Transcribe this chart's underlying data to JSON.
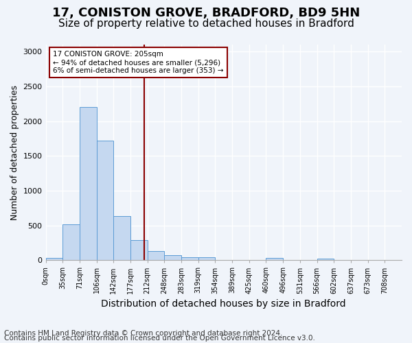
{
  "title_line1": "17, CONISTON GROVE, BRADFORD, BD9 5HN",
  "title_line2": "Size of property relative to detached houses in Bradford",
  "xlabel": "Distribution of detached houses by size in Bradford",
  "ylabel": "Number of detached properties",
  "bin_labels": [
    "0sqm",
    "35sqm",
    "71sqm",
    "106sqm",
    "142sqm",
    "177sqm",
    "212sqm",
    "248sqm",
    "283sqm",
    "319sqm",
    "354sqm",
    "389sqm",
    "425sqm",
    "460sqm",
    "496sqm",
    "531sqm",
    "566sqm",
    "602sqm",
    "637sqm",
    "673sqm",
    "708sqm"
  ],
  "bar_values": [
    30,
    520,
    2200,
    1720,
    635,
    290,
    130,
    75,
    45,
    40,
    0,
    0,
    0,
    30,
    0,
    0,
    20,
    0,
    0,
    0,
    0
  ],
  "bar_color": "#c5d8f0",
  "bar_edge_color": "#5b9bd5",
  "vline_x": 5.83,
  "vline_color": "#8b0000",
  "annotation_text": "17 CONISTON GROVE: 205sqm\n← 94% of detached houses are smaller (5,296)\n6% of semi-detached houses are larger (353) →",
  "annotation_box_color": "#ffffff",
  "annotation_box_edgecolor": "#8b0000",
  "ylim": [
    0,
    3100
  ],
  "yticks": [
    0,
    500,
    1000,
    1500,
    2000,
    2500,
    3000
  ],
  "footnote1": "Contains HM Land Registry data © Crown copyright and database right 2024.",
  "footnote2": "Contains public sector information licensed under the Open Government Licence v3.0.",
  "background_color": "#f0f4fa",
  "grid_color": "#ffffff",
  "title1_fontsize": 13,
  "title2_fontsize": 11,
  "xlabel_fontsize": 10,
  "ylabel_fontsize": 9,
  "footnote_fontsize": 7.5
}
